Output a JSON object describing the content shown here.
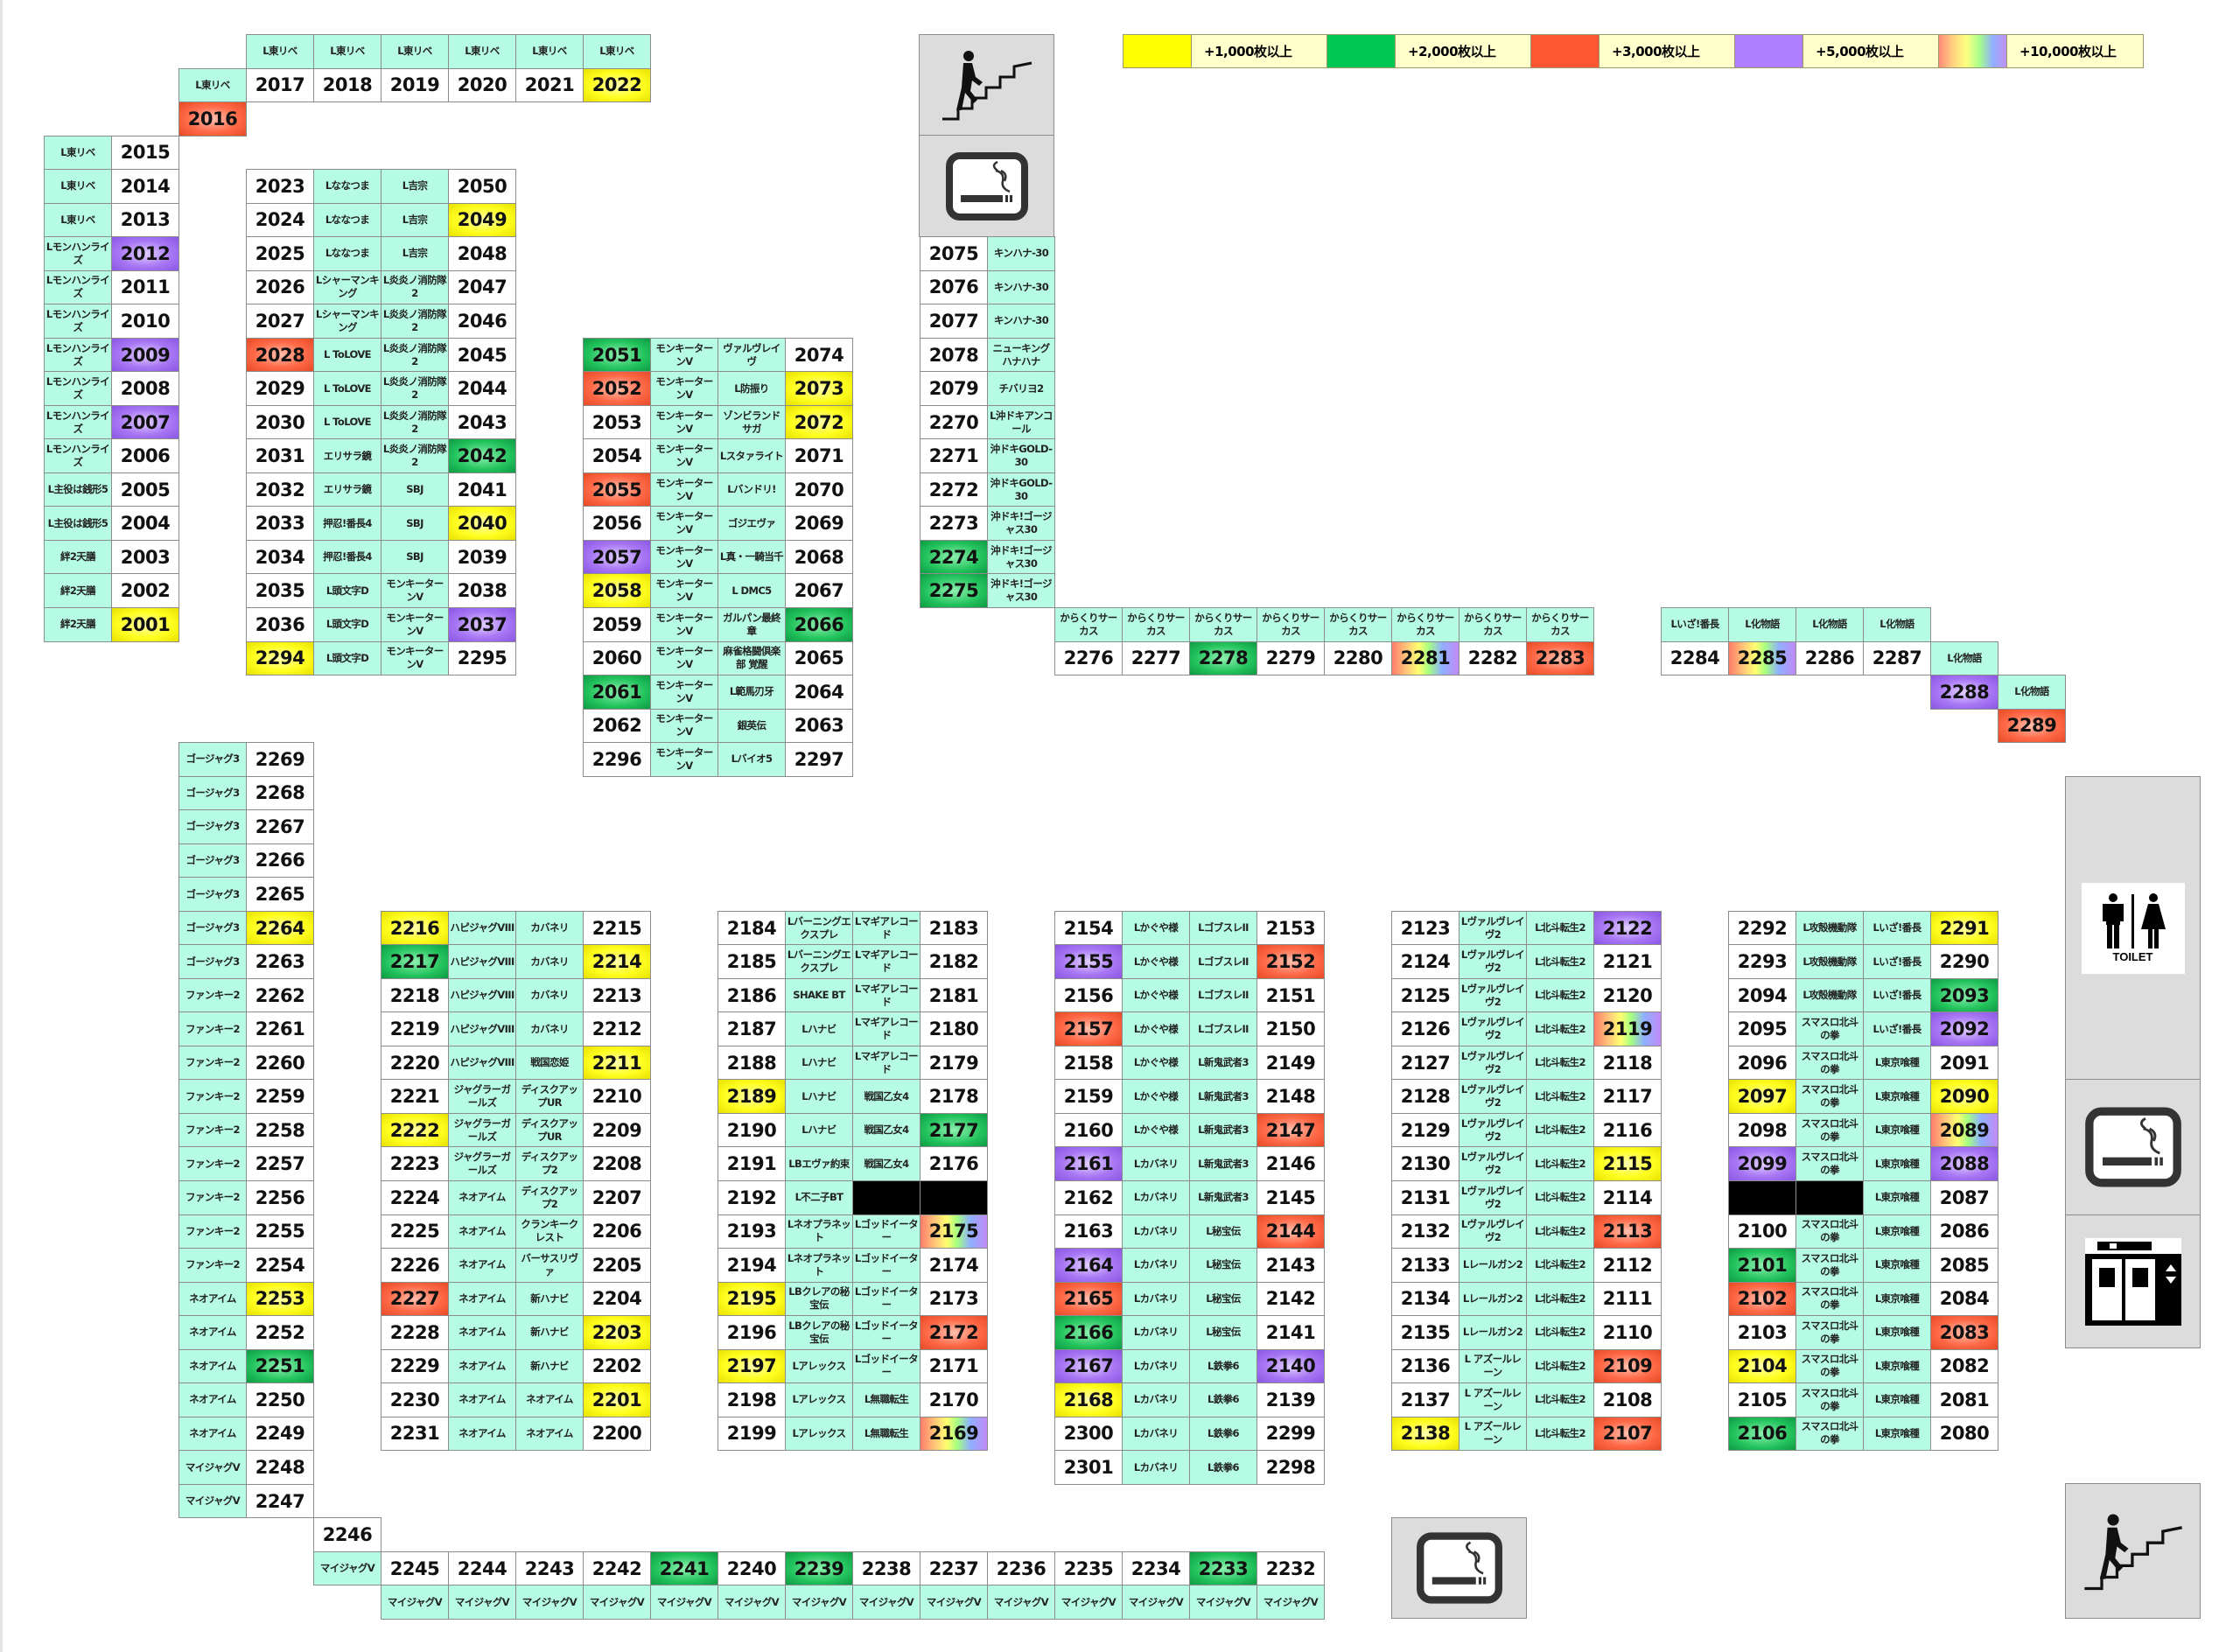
{
  "legend": {
    "items": [
      {
        "threshold": 1000,
        "label": "+1,000枚以上",
        "color": "#ffff00"
      },
      {
        "threshold": 2000,
        "label": "+2,000枚以上",
        "color": "#00c853"
      },
      {
        "threshold": 3000,
        "label": "+3,000枚以上",
        "color": "#ff5733"
      },
      {
        "threshold": 5000,
        "label": "+5,000枚以上",
        "color": "#b388ff"
      },
      {
        "threshold": 10000,
        "label": "+10,000枚以上",
        "color": "rainbow"
      }
    ]
  },
  "levels": {
    "2022": 1000,
    "2049": 1000,
    "2001": 1000,
    "2040": 1000,
    "2294": 1000,
    "2073": 1000,
    "2072": 1000,
    "2058": 1000,
    "2264": 1000,
    "2253": 1000,
    "2216": 1000,
    "2214": 1000,
    "2211": 1000,
    "2222": 1000,
    "2203": 1000,
    "2201": 1000,
    "2189": 1000,
    "2195": 1000,
    "2197": 1000,
    "2168": 1000,
    "2115": 1000,
    "2138": 1000,
    "2291": 1000,
    "2097": 1000,
    "2090": 1000,
    "2104": 1000,
    "2042": 2000,
    "2051": 2000,
    "2066": 2000,
    "2061": 2000,
    "2274": 2000,
    "2275": 2000,
    "2278": 2000,
    "2251": 2000,
    "2241": 2000,
    "2239": 2000,
    "2233": 2000,
    "2217": 2000,
    "2177": 2000,
    "2166": 2000,
    "2093": 2000,
    "2101": 2000,
    "2106": 2000,
    "2016": 3000,
    "2028": 3000,
    "2052": 3000,
    "2055": 3000,
    "2283": 3000,
    "2289": 3000,
    "2227": 3000,
    "2172": 3000,
    "2152": 3000,
    "2157": 3000,
    "2147": 3000,
    "2144": 3000,
    "2165": 3000,
    "2113": 3000,
    "2109": 3000,
    "2107": 3000,
    "2102": 3000,
    "2083": 3000,
    "2012": 5000,
    "2009": 5000,
    "2007": 5000,
    "2037": 5000,
    "2057": 5000,
    "2288": 5000,
    "2155": 5000,
    "2161": 5000,
    "2164": 5000,
    "2167": 5000,
    "2140": 5000,
    "2122": 5000,
    "2092": 5000,
    "2099": 5000,
    "2088": 5000,
    "2281": 10000,
    "2285": 10000,
    "2175": 10000,
    "2169": 10000,
    "2119": 10000,
    "2089": 10000
  },
  "facilities": {
    "stairs_top": "stairs-icon",
    "smoking_top": "smoking-room-icon",
    "toilet": {
      "icon": "toilet-icon",
      "label": "TOILET"
    },
    "smoking_right": "smoking-room-icon",
    "elevator": "elevator-icon",
    "stairs_bottom": "stairs-icon",
    "smoking_bottom": "smoking-room-icon"
  },
  "islands": [
    {
      "lines": [
        [
          "L東リベ",
          "L東リベ",
          "L東リベ",
          "L東リベ",
          "L東リベ",
          "L東リベ"
        ],
        [
          "2017",
          "2018",
          "2019",
          "2020",
          "2021",
          "2022"
        ]
      ]
    },
    {
      "lines": [
        [
          "L東リベ",
          "2016"
        ]
      ]
    },
    {
      "lines": [
        [
          "L東リベ",
          "L東リベ",
          "L東リベ",
          "Lモンハンライズ",
          "Lモンハンライズ",
          "Lモンハンライズ",
          "Lモンハンライズ",
          "Lモンハンライズ",
          "Lモンハンライズ",
          "Lモンハンライズ",
          "L主役は銭形5",
          "L主役は銭形5",
          "絆2天膳",
          "絆2天膳",
          "絆2天膳"
        ],
        [
          "2015",
          "2014",
          "2013",
          "2012",
          "2011",
          "2010",
          "2009",
          "2008",
          "2007",
          "2006",
          "2005",
          "2004",
          "2003",
          "2002",
          "2001"
        ]
      ]
    },
    {
      "lines": [
        [
          "2023",
          "2024",
          "2025",
          "2026",
          "2027",
          "2028",
          "2029",
          "2030",
          "2031",
          "2032",
          "2033",
          "2034",
          "2035",
          "2036",
          "2294"
        ],
        [
          "Lななつま",
          "Lななつま",
          "Lななつま",
          "Lシャーマンキング",
          "Lシャーマンキング",
          "L ToLOVE",
          "L ToLOVE",
          "L ToLOVE",
          "エリサラ鏡",
          "エリサラ鏡",
          "押忍!番長4",
          "押忍!番長4",
          "L頭文字D",
          "L頭文字D",
          "L頭文字D"
        ],
        [
          "L吉宗",
          "L吉宗",
          "L吉宗",
          "L炎炎ノ消防隊2",
          "L炎炎ノ消防隊2",
          "L炎炎ノ消防隊2",
          "L炎炎ノ消防隊2",
          "L炎炎ノ消防隊2",
          "L炎炎ノ消防隊2",
          "SBJ",
          "SBJ",
          "SBJ",
          "モンキーターンV",
          "モンキーターンV",
          "モンキーターンV"
        ],
        [
          "2050",
          "2049",
          "2048",
          "2047",
          "2046",
          "2045",
          "2044",
          "2043",
          "2042",
          "2041",
          "2040",
          "2039",
          "2038",
          "2037",
          "2295"
        ]
      ]
    },
    {
      "lines": [
        [
          "2051",
          "2052",
          "2053",
          "2054",
          "2055",
          "2056",
          "2057",
          "2058",
          "2059",
          "2060",
          "2061",
          "2062",
          "2296"
        ],
        [
          "モンキーターンV",
          "モンキーターンV",
          "モンキーターンV",
          "モンキーターンV",
          "モンキーターンV",
          "モンキーターンV",
          "モンキーターンV",
          "モンキーターンV",
          "モンキーターンV",
          "モンキーターンV",
          "モンキーターンV",
          "モンキーターンV",
          "モンキーターンV"
        ],
        [
          "ヴァルヴレイヴ",
          "L防振り",
          "ゾンビランドサガ",
          "Lスタァライト",
          "Lバンドリ!",
          "ゴジエヴァ",
          "L真・一騎当千",
          "L DMC5",
          "ガルパン最終章",
          "麻雀格闘倶楽部 覚醒",
          "L範馬刃牙",
          "銀英伝",
          "Lバイオ5"
        ],
        [
          "2074",
          "2073",
          "2072",
          "2071",
          "2070",
          "2069",
          "2068",
          "2067",
          "2066",
          "2065",
          "2064",
          "2063",
          "2297"
        ]
      ]
    },
    {
      "lines": [
        [
          "2075",
          "2076",
          "2077",
          "2078",
          "2079",
          "2270",
          "2271",
          "2272",
          "2273",
          "2274",
          "2275"
        ],
        [
          "キンハナ-30",
          "キンハナ-30",
          "キンハナ-30",
          "ニューキングハナハナ",
          "チバリヨ2",
          "L沖ドキアンコール",
          "沖ドキGOLD-30",
          "沖ドキGOLD-30",
          "沖ドキ!ゴージャス30",
          "沖ドキ!ゴージャス30",
          "沖ドキ!ゴージャス30"
        ]
      ]
    },
    {
      "lines": [
        [
          "からくりサーカス",
          "からくりサーカス",
          "からくりサーカス",
          "からくりサーカス",
          "からくりサーカス",
          "からくりサーカス",
          "からくりサーカス",
          "からくりサーカス"
        ],
        [
          "2276",
          "2277",
          "2278",
          "2279",
          "2280",
          "2281",
          "2282",
          "2283"
        ]
      ]
    },
    {
      "lines": [
        [
          "Lいざ!番長",
          "L化物語",
          "L化物語",
          "L化物語"
        ],
        [
          "2284",
          "2285",
          "2286",
          "2287"
        ]
      ]
    },
    {
      "lines": [
        [
          "L化物語",
          "2288"
        ]
      ]
    },
    {
      "lines": [
        [
          "L化物語",
          "2289"
        ]
      ]
    },
    {
      "lines": [
        [
          "ゴージャグ3",
          "ゴージャグ3",
          "ゴージャグ3",
          "ゴージャグ3",
          "ゴージャグ3",
          "ゴージャグ3",
          "ゴージャグ3",
          "ファンキー2",
          "ファンキー2",
          "ファンキー2",
          "ファンキー2",
          "ファンキー2",
          "ファンキー2",
          "ファンキー2",
          "ファンキー2",
          "ファンキー2",
          "ネオアイム",
          "ネオアイム",
          "ネオアイム",
          "ネオアイム",
          "ネオアイム",
          "マイジャグV",
          "マイジャグV"
        ],
        [
          "2269",
          "2268",
          "2267",
          "2266",
          "2265",
          "2264",
          "2263",
          "2262",
          "2261",
          "2260",
          "2259",
          "2258",
          "2257",
          "2256",
          "2255",
          "2254",
          "2253",
          "2252",
          "2251",
          "2250",
          "2249",
          "2248",
          "2247"
        ]
      ]
    },
    {
      "lines": [
        [
          "2246",
          "マイジャグV"
        ]
      ]
    },
    {
      "lines": [
        [
          "2245",
          "2244",
          "2243",
          "2242",
          "2241",
          "2240",
          "2239",
          "2238",
          "2237",
          "2236",
          "2235",
          "2234",
          "2233",
          "2232"
        ],
        [
          "マイジャグV",
          "マイジャグV",
          "マイジャグV",
          "マイジャグV",
          "マイジャグV",
          "マイジャグV",
          "マイジャグV",
          "マイジャグV",
          "マイジャグV",
          "マイジャグV",
          "マイジャグV",
          "マイジャグV",
          "マイジャグV",
          "マイジャグV"
        ]
      ]
    },
    {
      "lines": [
        [
          "2216",
          "2217",
          "2218",
          "2219",
          "2220",
          "2221",
          "2222",
          "2223",
          "2224",
          "2225",
          "2226",
          "2227",
          "2228",
          "2229",
          "2230",
          "2231"
        ],
        [
          "ハピジャグVIII",
          "ハピジャグVIII",
          "ハピジャグVIII",
          "ハピジャグVIII",
          "ハピジャグVIII",
          "ジャグラーガールズ",
          "ジャグラーガールズ",
          "ジャグラーガールズ",
          "ネオアイム",
          "ネオアイム",
          "ネオアイム",
          "ネオアイム",
          "ネオアイム",
          "ネオアイム",
          "ネオアイム",
          "ネオアイム"
        ],
        [
          "カバネリ",
          "カバネリ",
          "カバネリ",
          "カバネリ",
          "戦国恋姫",
          "ディスクアップUR",
          "ディスクアップUR",
          "ディスクアップ2",
          "ディスクアップ2",
          "クランキークレスト",
          "バーサスリヴァ",
          "新ハナビ",
          "新ハナビ",
          "新ハナビ",
          "ネオアイム",
          "ネオアイム"
        ],
        [
          "2215",
          "2214",
          "2213",
          "2212",
          "2211",
          "2210",
          "2209",
          "2208",
          "2207",
          "2206",
          "2205",
          "2204",
          "2203",
          "2202",
          "2201",
          "2200"
        ]
      ]
    },
    {
      "lines": [
        [
          "2184",
          "2185",
          "2186",
          "2187",
          "2188",
          "2189",
          "2190",
          "2191",
          "2192",
          "2193",
          "2194",
          "2195",
          "2196",
          "2197",
          "2198",
          "2199"
        ],
        [
          "Lバーニングエクスプレ",
          "Lバーニングエクスプレ",
          "SHAKE BT",
          "Lハナビ",
          "Lハナビ",
          "Lハナビ",
          "Lハナビ",
          "LBエヴァ約束",
          "L不二子BT",
          "Lネオプラネット",
          "Lネオプラネット",
          "LBクレアの秘宝伝",
          "LBクレアの秘宝伝",
          "Lアレックス",
          "Lアレックス",
          "Lアレックス"
        ],
        [
          "Lマギアレコード",
          "Lマギアレコード",
          "Lマギアレコード",
          "Lマギアレコード",
          "Lマギアレコード",
          "戦国乙女4",
          "戦国乙女4",
          "戦国乙女4",
          null,
          "Lゴッドイーター",
          "Lゴッドイーター",
          "Lゴッドイーター",
          "Lゴッドイーター",
          "Lゴッドイーター",
          "L無職転生",
          "L無職転生"
        ],
        [
          "2183",
          "2182",
          "2181",
          "2180",
          "2179",
          "2178",
          "2177",
          "2176",
          null,
          "2175",
          "2174",
          "2173",
          "2172",
          "2171",
          "2170",
          "2169"
        ]
      ]
    },
    {
      "lines": [
        [
          "2154",
          "2155",
          "2156",
          "2157",
          "2158",
          "2159",
          "2160",
          "2161",
          "2162",
          "2163",
          "2164",
          "2165",
          "2166",
          "2167",
          "2168",
          "2300",
          "2301"
        ],
        [
          "Lかぐや様",
          "Lかぐや様",
          "Lかぐや様",
          "Lかぐや様",
          "Lかぐや様",
          "Lかぐや様",
          "Lかぐや様",
          "Lカバネリ",
          "Lカバネリ",
          "Lカバネリ",
          "Lカバネリ",
          "Lカバネリ",
          "Lカバネリ",
          "Lカバネリ",
          "Lカバネリ",
          "Lカバネリ",
          "Lカバネリ"
        ],
        [
          "LゴブスレII",
          "LゴブスレII",
          "LゴブスレII",
          "LゴブスレII",
          "L新鬼武者3",
          "L新鬼武者3",
          "L新鬼武者3",
          "L新鬼武者3",
          "L新鬼武者3",
          "L秘宝伝",
          "L秘宝伝",
          "L秘宝伝",
          "L秘宝伝",
          "L鉄拳6",
          "L鉄拳6",
          "L鉄拳6",
          "L鉄拳6"
        ],
        [
          "2153",
          "2152",
          "2151",
          "2150",
          "2149",
          "2148",
          "2147",
          "2146",
          "2145",
          "2144",
          "2143",
          "2142",
          "2141",
          "2140",
          "2139",
          "2299",
          "2298"
        ]
      ]
    },
    {
      "lines": [
        [
          "2123",
          "2124",
          "2125",
          "2126",
          "2127",
          "2128",
          "2129",
          "2130",
          "2131",
          "2132",
          "2133",
          "2134",
          "2135",
          "2136",
          "2137",
          "2138"
        ],
        [
          "Lヴァルヴレイヴ2",
          "Lヴァルヴレイヴ2",
          "Lヴァルヴレイヴ2",
          "Lヴァルヴレイヴ2",
          "Lヴァルヴレイヴ2",
          "Lヴァルヴレイヴ2",
          "Lヴァルヴレイヴ2",
          "Lヴァルヴレイヴ2",
          "Lヴァルヴレイヴ2",
          "Lヴァルヴレイヴ2",
          "Lレールガン2",
          "Lレールガン2",
          "Lレールガン2",
          "L アズールレーン",
          "L アズールレーン",
          "L アズールレーン"
        ],
        [
          "L北斗転生2",
          "L北斗転生2",
          "L北斗転生2",
          "L北斗転生2",
          "L北斗転生2",
          "L北斗転生2",
          "L北斗転生2",
          "L北斗転生2",
          "L北斗転生2",
          "L北斗転生2",
          "L北斗転生2",
          "L北斗転生2",
          "L北斗転生2",
          "L北斗転生2",
          "L北斗転生2",
          "L北斗転生2"
        ],
        [
          "2122",
          "2121",
          "2120",
          "2119",
          "2118",
          "2117",
          "2116",
          "2115",
          "2114",
          "2113",
          "2112",
          "2111",
          "2110",
          "2109",
          "2108",
          "2107"
        ]
      ]
    },
    {
      "lines": [
        [
          "2292",
          "2293",
          "2094",
          "2095",
          "2096",
          "2097",
          "2098",
          "2099",
          null,
          "2100",
          "2101",
          "2102",
          "2103",
          "2104",
          "2105",
          "2106"
        ],
        [
          "L攻殻機動隊",
          "L攻殻機動隊",
          "L攻殻機動隊",
          "スマスロ北斗の拳",
          "スマスロ北斗の拳",
          "スマスロ北斗の拳",
          "スマスロ北斗の拳",
          "スマスロ北斗の拳",
          null,
          "スマスロ北斗の拳",
          "スマスロ北斗の拳",
          "スマスロ北斗の拳",
          "スマスロ北斗の拳",
          "スマスロ北斗の拳",
          "スマスロ北斗の拳",
          "スマスロ北斗の拳"
        ],
        [
          "Lいざ!番長",
          "Lいざ!番長",
          "Lいざ!番長",
          "Lいざ!番長",
          "L東京喰種",
          "L東京喰種",
          "L東京喰種",
          "L東京喰種",
          "L東京喰種",
          "L東京喰種",
          "L東京喰種",
          "L東京喰種",
          "L東京喰種",
          "L東京喰種",
          "L東京喰種",
          "L東京喰種"
        ],
        [
          "2291",
          "2290",
          "2093",
          "2092",
          "2091",
          "2090",
          "2089",
          "2088",
          "2087",
          "2086",
          "2085",
          "2084",
          "2083",
          "2082",
          "2081",
          "2080"
        ]
      ]
    }
  ]
}
